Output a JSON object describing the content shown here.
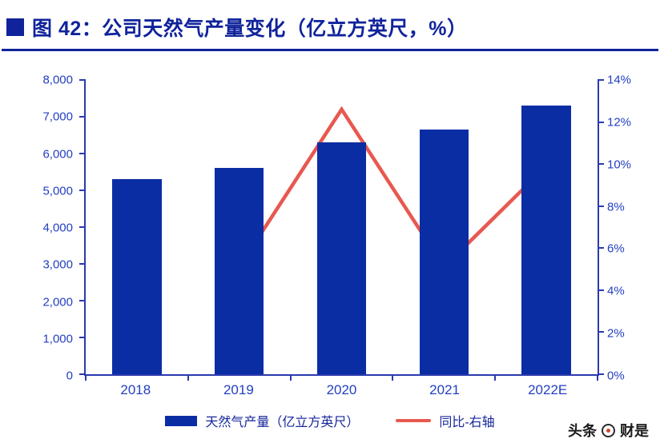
{
  "header": {
    "title": "图 42：公司天然气产量变化（亿立方英尺，%）"
  },
  "chart_data": {
    "type": "bar+line",
    "title": "图 42：公司天然气产量变化（亿立方英尺，%）",
    "categories": [
      "2018",
      "2019",
      "2020",
      "2021",
      "2022E"
    ],
    "series": [
      {
        "name": "天然气产量（亿立方英尺）",
        "type": "bar",
        "axis": "left",
        "color": "#0b2da4",
        "values": [
          5300,
          5600,
          6300,
          6650,
          7300
        ]
      },
      {
        "name": "同比-右轴",
        "type": "line",
        "axis": "right",
        "color": "#e8584f",
        "values": [
          null,
          5.1,
          12.6,
          5.1,
          9.9
        ]
      }
    ],
    "left_axis": {
      "min": 0,
      "max": 8000,
      "step": 1000,
      "tick_labels": [
        "8,000",
        "7,000",
        "6,000",
        "5,000",
        "4,000",
        "3,000",
        "2,000",
        "1,000",
        "0"
      ]
    },
    "right_axis": {
      "min": 0,
      "max": 14,
      "step": 2,
      "tick_labels": [
        "14%",
        "12%",
        "10%",
        "8%",
        "6%",
        "4%",
        "2%",
        "0%"
      ]
    },
    "grid": "off",
    "legend_position": "bottom"
  },
  "watermark": {
    "brand1": "头条",
    "icon": "circle-logo",
    "brand2": "财是"
  }
}
